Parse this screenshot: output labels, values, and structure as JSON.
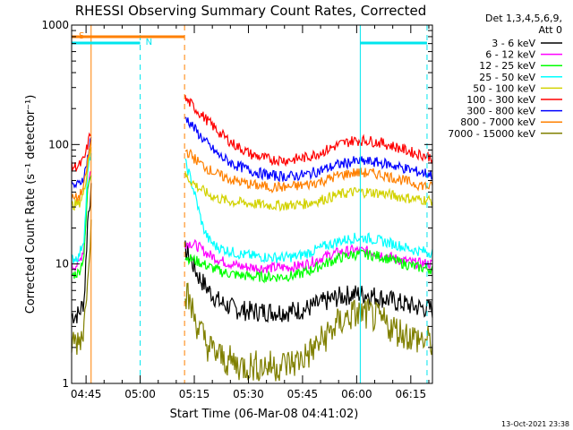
{
  "chart_data": {
    "type": "line",
    "title": "RHESSI Observing Summary Count Rates, Corrected",
    "xlabel": "Start Time (06-Mar-08 04:41:02)",
    "ylabel": "Corrected Count Rate (s⁻¹ detector⁻¹)",
    "yscale": "log",
    "ylim": [
      1,
      1000
    ],
    "xlim_minutes": [
      0,
      100
    ],
    "x_unit": "minutes after 04:41:02",
    "x_ticks": [
      {
        "t": 4,
        "label": "04:45"
      },
      {
        "t": 19,
        "label": "05:00"
      },
      {
        "t": 34,
        "label": "05:15"
      },
      {
        "t": 49,
        "label": "05:30"
      },
      {
        "t": 64,
        "label": "05:45"
      },
      {
        "t": 79,
        "label": "06:00"
      },
      {
        "t": 94,
        "label": "06:15"
      }
    ],
    "y_ticks": [
      {
        "v": 1,
        "label": "1"
      },
      {
        "v": 10,
        "label": "10"
      },
      {
        "v": 100,
        "label": "100"
      },
      {
        "v": 1000,
        "label": "1000"
      }
    ],
    "legend_header": [
      "Det 1,3,4,5,6,9,",
      "Att 0"
    ],
    "legend_position": "right",
    "segments": [
      [
        0,
        5.4
      ],
      [
        31.5,
        100
      ]
    ],
    "series": [
      {
        "name": "3 - 6 keV",
        "color": "#000000",
        "pts": [
          [
            0,
            3.7
          ],
          [
            2,
            3.8
          ],
          [
            3.5,
            5
          ],
          [
            4.5,
            25
          ],
          [
            5.3,
            40
          ],
          [
            31.5,
            13
          ],
          [
            33,
            11
          ],
          [
            35,
            8
          ],
          [
            38,
            6
          ],
          [
            41,
            4.8
          ],
          [
            45,
            4.2
          ],
          [
            50,
            4
          ],
          [
            55,
            4
          ],
          [
            60,
            4
          ],
          [
            65,
            4.2
          ],
          [
            70,
            4.8
          ],
          [
            74,
            5.3
          ],
          [
            78,
            5.6
          ],
          [
            82,
            5.6
          ],
          [
            86,
            5.2
          ],
          [
            90,
            4.8
          ],
          [
            95,
            4.4
          ],
          [
            100,
            4.2
          ]
        ]
      },
      {
        "name": "6 - 12 keV",
        "color": "#ff00ff",
        "pts": [
          [
            0,
            9.5
          ],
          [
            2,
            10
          ],
          [
            3.5,
            14
          ],
          [
            4.5,
            45
          ],
          [
            5.3,
            60
          ],
          [
            31.5,
            15
          ],
          [
            33,
            15
          ],
          [
            35,
            14
          ],
          [
            38,
            12
          ],
          [
            42,
            10.5
          ],
          [
            47,
            9.5
          ],
          [
            52,
            9.3
          ],
          [
            57,
            9.3
          ],
          [
            62,
            9.5
          ],
          [
            66,
            10.2
          ],
          [
            70,
            11.5
          ],
          [
            74,
            12.5
          ],
          [
            78,
            13
          ],
          [
            82,
            12.8
          ],
          [
            86,
            12
          ],
          [
            90,
            11
          ],
          [
            95,
            10.2
          ],
          [
            100,
            10
          ]
        ]
      },
      {
        "name": "12 - 25 keV",
        "color": "#00ff00",
        "pts": [
          [
            0,
            8
          ],
          [
            2,
            8.5
          ],
          [
            3.5,
            12
          ],
          [
            4.5,
            45
          ],
          [
            5.3,
            60
          ],
          [
            31.5,
            11.5
          ],
          [
            33,
            11
          ],
          [
            35,
            10.5
          ],
          [
            38,
            9.5
          ],
          [
            42,
            8.5
          ],
          [
            47,
            8
          ],
          [
            52,
            7.8
          ],
          [
            57,
            7.8
          ],
          [
            62,
            8
          ],
          [
            66,
            8.8
          ],
          [
            70,
            10
          ],
          [
            74,
            11.2
          ],
          [
            78,
            12
          ],
          [
            82,
            12
          ],
          [
            86,
            11.5
          ],
          [
            90,
            10.5
          ],
          [
            95,
            9.5
          ],
          [
            100,
            9
          ]
        ]
      },
      {
        "name": "25 - 50 keV",
        "color": "#00ffff",
        "pts": [
          [
            0,
            11
          ],
          [
            2,
            11.5
          ],
          [
            3.5,
            17
          ],
          [
            4.5,
            60
          ],
          [
            5.3,
            85
          ],
          [
            31.5,
            70
          ],
          [
            32.5,
            58
          ],
          [
            33.5,
            45
          ],
          [
            34.5,
            35
          ],
          [
            35.5,
            26
          ],
          [
            36.5,
            20
          ],
          [
            38,
            16
          ],
          [
            40,
            14
          ],
          [
            43,
            13
          ],
          [
            47,
            12
          ],
          [
            52,
            11.5
          ],
          [
            57,
            11.3
          ],
          [
            62,
            11.5
          ],
          [
            66,
            12.5
          ],
          [
            70,
            14
          ],
          [
            74,
            15.5
          ],
          [
            78,
            16.5
          ],
          [
            82,
            16.5
          ],
          [
            86,
            15.5
          ],
          [
            90,
            14.5
          ],
          [
            95,
            13
          ],
          [
            100,
            12.5
          ]
        ]
      },
      {
        "name": "50 - 100 keV",
        "color": "#d2d200",
        "pts": [
          [
            0,
            31
          ],
          [
            2,
            32
          ],
          [
            3.5,
            40
          ],
          [
            4.5,
            70
          ],
          [
            5.3,
            100
          ],
          [
            31.5,
            55
          ],
          [
            33,
            50
          ],
          [
            35,
            44
          ],
          [
            38,
            38
          ],
          [
            41,
            35
          ],
          [
            45,
            33
          ],
          [
            50,
            32
          ],
          [
            55,
            31
          ],
          [
            60,
            31
          ],
          [
            65,
            32
          ],
          [
            70,
            35
          ],
          [
            74,
            38
          ],
          [
            78,
            40
          ],
          [
            82,
            40
          ],
          [
            86,
            39
          ],
          [
            90,
            37
          ],
          [
            95,
            35
          ],
          [
            100,
            34
          ]
        ]
      },
      {
        "name": "100 - 300 keV",
        "color": "#ff0000",
        "pts": [
          [
            0,
            65
          ],
          [
            2,
            66
          ],
          [
            3.5,
            75
          ],
          [
            4.5,
            100
          ],
          [
            5.3,
            130
          ],
          [
            31.5,
            240
          ],
          [
            33,
            220
          ],
          [
            35,
            190
          ],
          [
            38,
            155
          ],
          [
            41,
            125
          ],
          [
            45,
            100
          ],
          [
            50,
            82
          ],
          [
            55,
            75
          ],
          [
            60,
            74
          ],
          [
            65,
            78
          ],
          [
            70,
            88
          ],
          [
            74,
            100
          ],
          [
            78,
            108
          ],
          [
            82,
            108
          ],
          [
            86,
            103
          ],
          [
            90,
            95
          ],
          [
            95,
            85
          ],
          [
            100,
            78
          ]
        ]
      },
      {
        "name": "300 - 800 keV",
        "color": "#0000ff",
        "pts": [
          [
            0,
            45
          ],
          [
            2,
            46
          ],
          [
            3.5,
            55
          ],
          [
            4.5,
            80
          ],
          [
            5.3,
            110
          ],
          [
            31.5,
            170
          ],
          [
            33,
            150
          ],
          [
            35,
            125
          ],
          [
            38,
            98
          ],
          [
            41,
            80
          ],
          [
            45,
            68
          ],
          [
            50,
            60
          ],
          [
            55,
            55
          ],
          [
            60,
            54
          ],
          [
            65,
            56
          ],
          [
            70,
            62
          ],
          [
            74,
            68
          ],
          [
            78,
            72
          ],
          [
            82,
            72
          ],
          [
            86,
            70
          ],
          [
            90,
            66
          ],
          [
            95,
            60
          ],
          [
            100,
            56
          ]
        ]
      },
      {
        "name": "800 - 7000 keV",
        "color": "#ff8000",
        "pts": [
          [
            0,
            35
          ],
          [
            2,
            36
          ],
          [
            3.5,
            45
          ],
          [
            4.5,
            75
          ],
          [
            5.3,
            105
          ],
          [
            31.5,
            90
          ],
          [
            33,
            82
          ],
          [
            35,
            72
          ],
          [
            38,
            62
          ],
          [
            41,
            55
          ],
          [
            45,
            50
          ],
          [
            50,
            46
          ],
          [
            55,
            44
          ],
          [
            60,
            44
          ],
          [
            65,
            46
          ],
          [
            70,
            50
          ],
          [
            74,
            55
          ],
          [
            78,
            58
          ],
          [
            82,
            58
          ],
          [
            86,
            56
          ],
          [
            90,
            52
          ],
          [
            95,
            47
          ],
          [
            100,
            44
          ]
        ]
      },
      {
        "name": "7000 - 15000 keV",
        "color": "#808000",
        "pts": [
          [
            0,
            2.2
          ],
          [
            2,
            2.3
          ],
          [
            3.5,
            3
          ],
          [
            4.5,
            10
          ],
          [
            5.3,
            20
          ],
          [
            31.5,
            6
          ],
          [
            33,
            4.5
          ],
          [
            35,
            3
          ],
          [
            38,
            2
          ],
          [
            42,
            1.6
          ],
          [
            47,
            1.4
          ],
          [
            52,
            1.4
          ],
          [
            57,
            1.4
          ],
          [
            62,
            1.5
          ],
          [
            66,
            1.8
          ],
          [
            70,
            2.4
          ],
          [
            74,
            3.2
          ],
          [
            78,
            3.8
          ],
          [
            82,
            3.8
          ],
          [
            86,
            3.3
          ],
          [
            90,
            2.8
          ],
          [
            95,
            2.4
          ],
          [
            100,
            2.2
          ]
        ]
      }
    ],
    "annotations": {
      "orange_bar_label": "S",
      "cyan_bar_label": "N",
      "orange_bar": [
        0,
        31.3
      ],
      "cyan_bars": [
        [
          0,
          19
        ],
        [
          80,
          98.5
        ]
      ],
      "orange_vlines": [
        5.4,
        31.3
      ],
      "cyan_vlines": [
        0,
        19,
        80,
        98.5
      ]
    }
  },
  "timestamp": "13-Oct-2021 23:38"
}
